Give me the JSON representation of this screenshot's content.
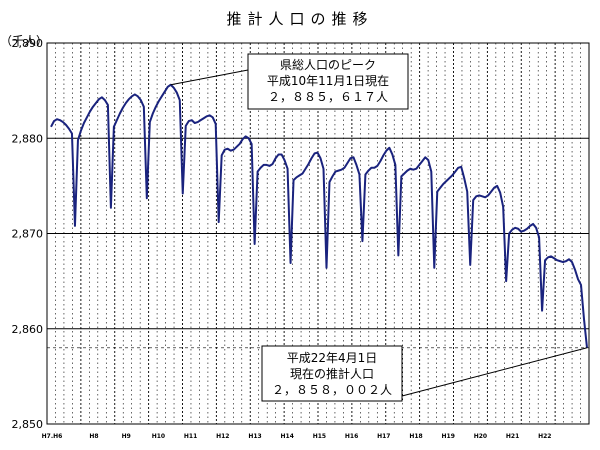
{
  "chart_data": {
    "type": "line",
    "title": "推計人口の推移",
    "ylabel": "（千人）",
    "ylim": [
      2850,
      2890
    ],
    "yticks": [
      "2,850",
      "2,860",
      "2,870",
      "2,880",
      "2,890"
    ],
    "ytick_values": [
      2850,
      2860,
      2870,
      2880,
      2890
    ],
    "x_start": "H6.4",
    "x_end": "H22.4",
    "xticks": [
      "H7.H6",
      "H8",
      "H9",
      "H10",
      "H11",
      "H12",
      "H13",
      "H14",
      "H15",
      "H16",
      "H17",
      "H18",
      "H19",
      "H20",
      "H21",
      "H22"
    ],
    "grid": true,
    "line_color": "#1a237e",
    "series": [
      {
        "values": [
          2881.2,
          2881.8,
          2882.0,
          2881.9,
          2881.7,
          2881.4,
          2881.0,
          2880.5,
          2870.8,
          2879.8,
          2880.8,
          2881.6,
          2882.2,
          2882.8,
          2883.3,
          2883.7,
          2884.1,
          2884.3,
          2884.0,
          2883.5,
          2872.7,
          2881.2,
          2881.9,
          2882.6,
          2883.2,
          2883.7,
          2884.1,
          2884.4,
          2884.6,
          2884.4,
          2884.0,
          2883.3,
          2873.7,
          2881.7,
          2882.6,
          2883.3,
          2883.9,
          2884.4,
          2884.9,
          2885.4,
          2885.617,
          2885.3,
          2884.8,
          2884.0,
          2874.2,
          2881.3,
          2881.8,
          2881.9,
          2881.6,
          2881.7,
          2881.9,
          2882.1,
          2882.3,
          2882.4,
          2882.2,
          2881.5,
          2871.2,
          2878.2,
          2878.8,
          2878.9,
          2878.7,
          2878.8,
          2879.1,
          2879.4,
          2879.9,
          2880.2,
          2880.0,
          2879.4,
          2868.9,
          2876.5,
          2876.9,
          2877.2,
          2877.2,
          2877.1,
          2877.3,
          2877.9,
          2878.3,
          2878.3,
          2877.7,
          2876.8,
          2866.9,
          2875.6,
          2875.9,
          2876.1,
          2876.3,
          2876.8,
          2877.3,
          2877.9,
          2878.4,
          2878.5,
          2877.9,
          2876.8,
          2866.4,
          2875.4,
          2876.0,
          2876.5,
          2876.6,
          2876.7,
          2876.9,
          2877.4,
          2877.9,
          2878.0,
          2877.2,
          2876.2,
          2869.2,
          2876.2,
          2876.6,
          2876.9,
          2876.9,
          2877.1,
          2877.6,
          2878.2,
          2878.7,
          2879.0,
          2878.3,
          2877.2,
          2867.7,
          2876.0,
          2876.3,
          2876.6,
          2876.8,
          2876.7,
          2876.8,
          2877.2,
          2877.6,
          2878.0,
          2877.7,
          2876.5,
          2866.4,
          2874.4,
          2874.8,
          2875.2,
          2875.5,
          2875.8,
          2876.1,
          2876.5,
          2876.9,
          2877.0,
          2875.8,
          2874.4,
          2866.7,
          2873.5,
          2873.9,
          2874.0,
          2873.9,
          2873.8,
          2874.0,
          2874.4,
          2874.8,
          2875.0,
          2874.3,
          2872.8,
          2865.0,
          2870.0,
          2870.4,
          2870.6,
          2870.5,
          2870.2,
          2870.3,
          2870.5,
          2870.8,
          2871.0,
          2870.6,
          2869.6,
          2861.9,
          2867.2,
          2867.5,
          2867.6,
          2867.4,
          2867.2,
          2867.1,
          2867.0,
          2867.1,
          2867.3,
          2867.0,
          2866.2,
          2865.2,
          2864.6,
          2861.0,
          2858.002
        ]
      }
    ],
    "annotations": [
      {
        "lines": [
          "県総人口のピーク",
          "平成10年11月1日現在",
          "２，８８５，６１７人"
        ]
      },
      {
        "lines": [
          "平成22年4月1日",
          "現在の推計人口",
          "２，８５８，００２人"
        ]
      }
    ]
  }
}
